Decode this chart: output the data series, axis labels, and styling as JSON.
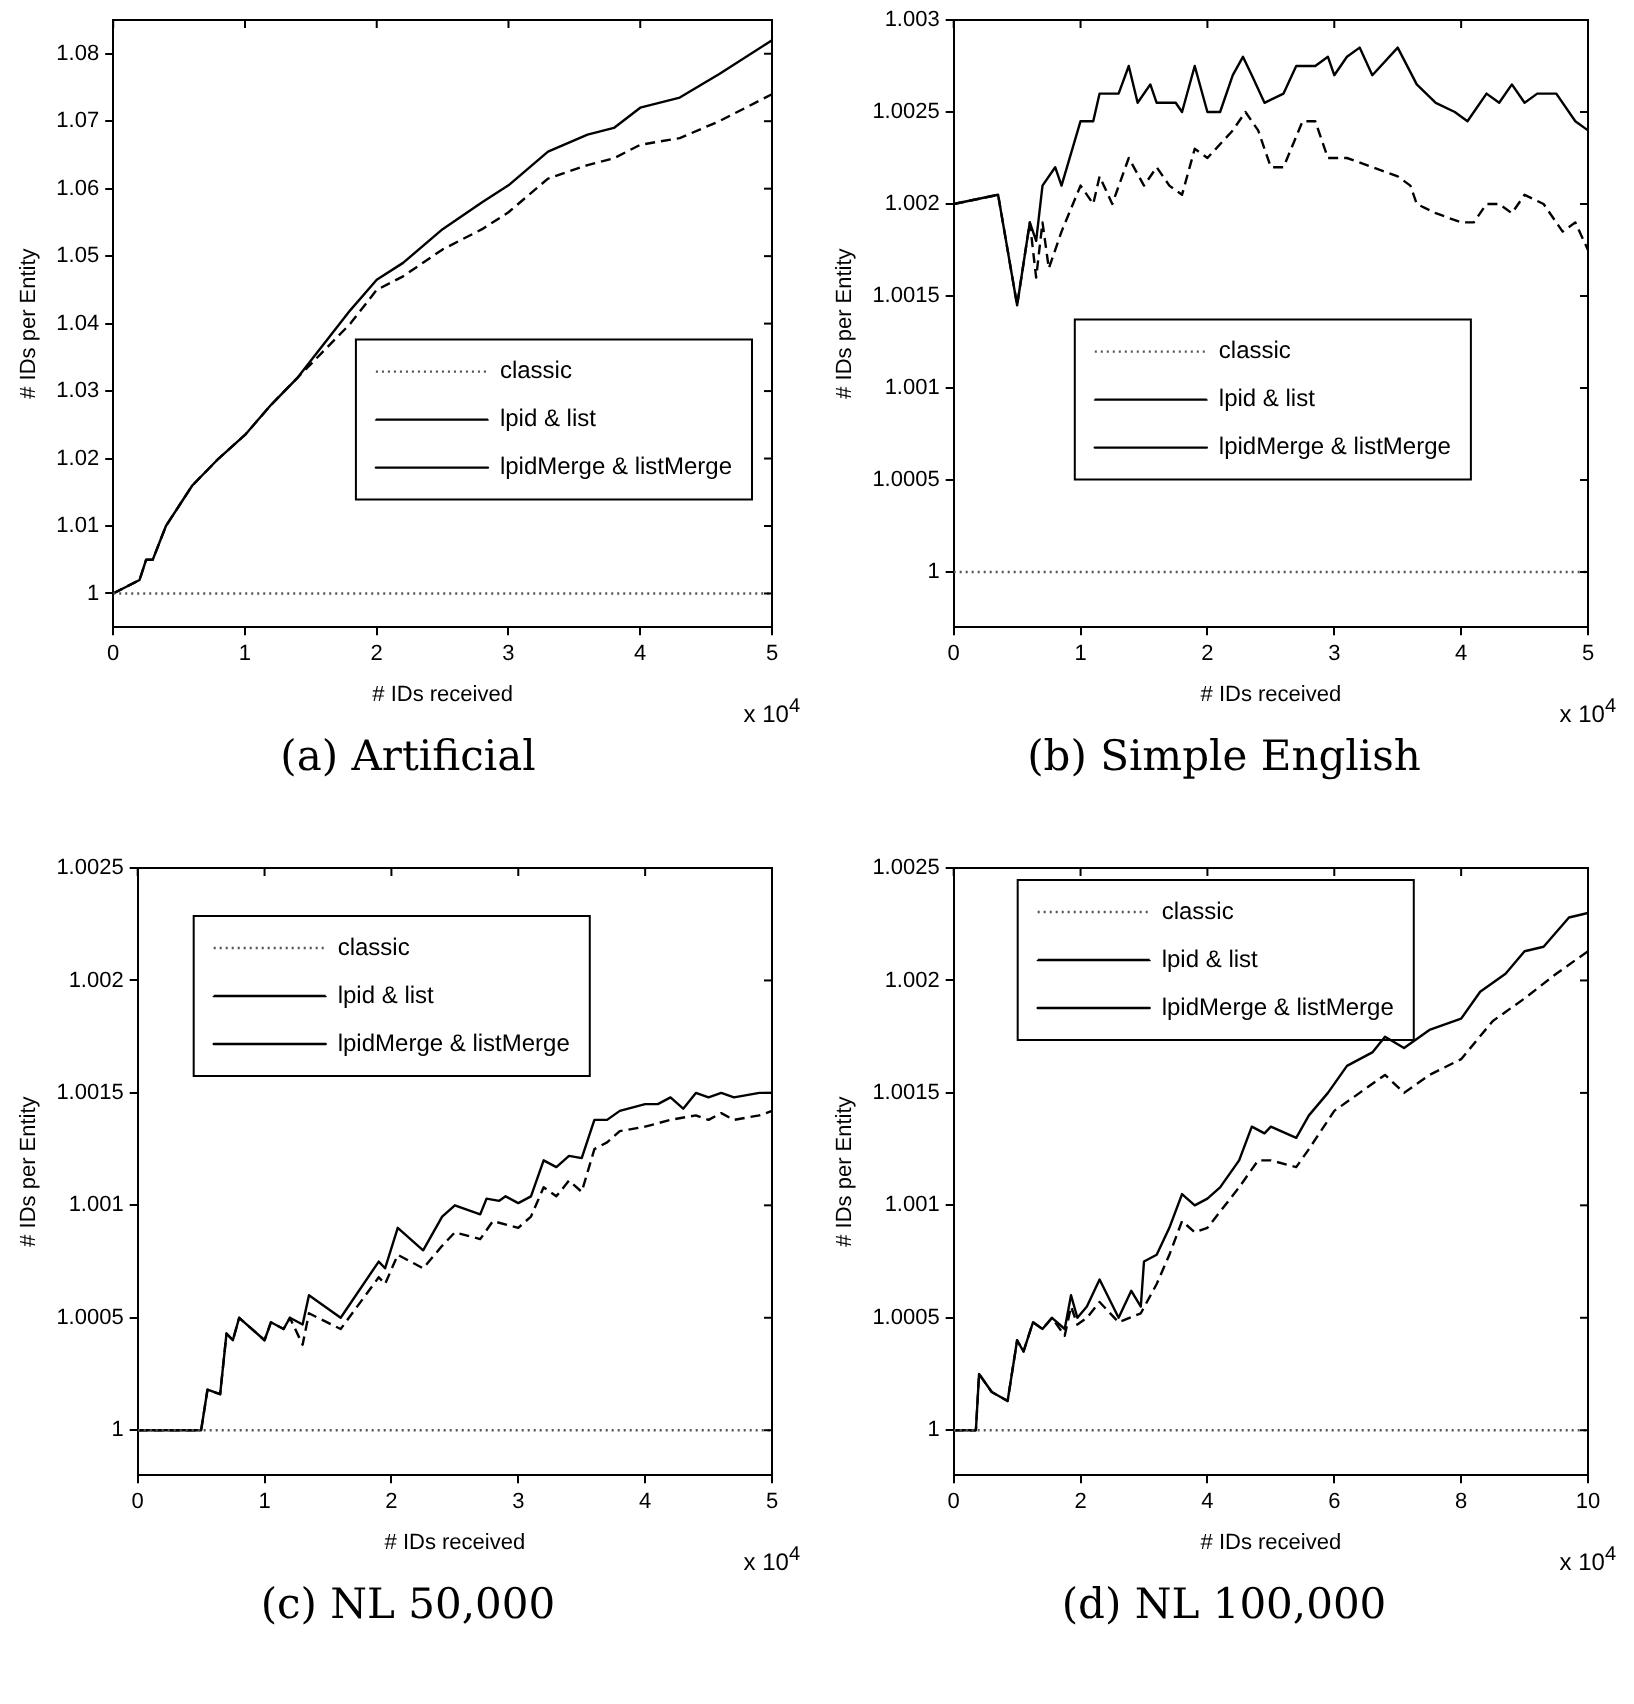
{
  "chart_data": [
    {
      "type": "line",
      "title": "(a) Artificial",
      "xlabel": "# IDs received",
      "ylabel": "# IDs per Entity",
      "annotations": [
        "x 10$^{4}$"
      ],
      "xlim": [
        0,
        5
      ],
      "xticks": [
        0,
        1,
        2,
        3,
        4,
        5
      ],
      "ylim": [
        0.995,
        1.085
      ],
      "yticks": [
        1,
        1.01,
        1.02,
        1.03,
        1.04,
        1.05,
        1.06,
        1.07,
        1.08
      ],
      "legend": "right",
      "grid": false,
      "marker": "none",
      "series": [
        {
          "name": "classic",
          "color": "#555555",
          "line_style": "dotted",
          "x": [
            0,
            5
          ],
          "values": [
            1,
            1
          ]
        },
        {
          "name": "lpid & list",
          "color": "#000000",
          "line_style": "dashed",
          "x": [
            0,
            0.2,
            0.25,
            0.3,
            0.4,
            0.5,
            0.6,
            0.8,
            1,
            1.2,
            1.4,
            1.6,
            1.8,
            2,
            2.2,
            2.5,
            2.8,
            3,
            3.3,
            3.6,
            3.8,
            4,
            4.3,
            4.6,
            5
          ],
          "values": [
            1,
            1.002,
            1.005,
            1.005,
            1.01,
            1.013,
            1.016,
            1.02,
            1.0235,
            1.028,
            1.032,
            1.036,
            1.04,
            1.045,
            1.047,
            1.051,
            1.054,
            1.0565,
            1.0615,
            1.0635,
            1.0645,
            1.0665,
            1.0675,
            1.07,
            1.074
          ]
        },
        {
          "name": "lpidMerge & listMerge",
          "color": "#000000",
          "line_style": "solid",
          "x": [
            0,
            0.2,
            0.25,
            0.3,
            0.4,
            0.5,
            0.6,
            0.8,
            1,
            1.2,
            1.4,
            1.6,
            1.8,
            2,
            2.2,
            2.5,
            2.8,
            3,
            3.3,
            3.6,
            3.8,
            4,
            4.3,
            4.6,
            5
          ],
          "values": [
            1,
            1.002,
            1.005,
            1.005,
            1.01,
            1.013,
            1.016,
            1.02,
            1.0235,
            1.028,
            1.032,
            1.037,
            1.042,
            1.0465,
            1.049,
            1.054,
            1.058,
            1.0605,
            1.0655,
            1.068,
            1.069,
            1.072,
            1.0735,
            1.077,
            1.082
          ]
        }
      ]
    },
    {
      "type": "line",
      "title": "(b) Simple English",
      "xlabel": "# IDs received",
      "ylabel": "# IDs per Entity",
      "annotations": [
        "x 10$^{4}$"
      ],
      "xlim": [
        0,
        5
      ],
      "xticks": [
        0,
        1,
        2,
        3,
        4,
        5
      ],
      "ylim": [
        0.9997,
        1.003
      ],
      "yticks": [
        1,
        1.0005,
        1.001,
        1.0015,
        1.002,
        1.0025,
        1.003
      ],
      "legend": "center",
      "grid": false,
      "marker": "none",
      "series": [
        {
          "name": "classic",
          "color": "#555555",
          "line_style": "dotted",
          "x": [
            0,
            5
          ],
          "values": [
            1,
            1
          ]
        },
        {
          "name": "lpid & list",
          "color": "#000000",
          "line_style": "dashed",
          "x": [
            0,
            0.35,
            0.5,
            0.6,
            0.65,
            0.7,
            0.75,
            0.85,
            1,
            1.1,
            1.15,
            1.25,
            1.38,
            1.5,
            1.6,
            1.7,
            1.8,
            1.9,
            2,
            2.2,
            2.3,
            2.4,
            2.5,
            2.6,
            2.75,
            2.85,
            2.95,
            3.1,
            3.3,
            3.5,
            3.6,
            3.65,
            3.8,
            4,
            4.1,
            4.2,
            4.3,
            4.4,
            4.5,
            4.65,
            4.8,
            4.9,
            5
          ],
          "values": [
            1.002,
            1.00205,
            1.00145,
            1.0019,
            1.0016,
            1.0019,
            1.00165,
            1.00185,
            1.0021,
            1.002,
            1.00215,
            1.002,
            1.00225,
            1.0021,
            1.0022,
            1.0021,
            1.00205,
            1.0023,
            1.00225,
            1.0024,
            1.0025,
            1.0024,
            1.0022,
            1.0022,
            1.00245,
            1.00245,
            1.00225,
            1.00225,
            1.0022,
            1.00215,
            1.0021,
            1.002,
            1.00195,
            1.0019,
            1.0019,
            1.002,
            1.002,
            1.00195,
            1.00205,
            1.002,
            1.00185,
            1.0019,
            1.00175
          ]
        },
        {
          "name": "lpidMerge & listMerge",
          "color": "#000000",
          "line_style": "solid",
          "x": [
            0,
            0.35,
            0.5,
            0.6,
            0.65,
            0.7,
            0.8,
            0.85,
            1,
            1.1,
            1.15,
            1.3,
            1.38,
            1.45,
            1.55,
            1.6,
            1.75,
            1.8,
            1.9,
            2,
            2.1,
            2.2,
            2.28,
            2.35,
            2.45,
            2.6,
            2.7,
            2.85,
            2.95,
            3,
            3.1,
            3.2,
            3.3,
            3.5,
            3.65,
            3.8,
            3.95,
            4.05,
            4.2,
            4.3,
            4.4,
            4.5,
            4.6,
            4.75,
            4.9,
            5
          ],
          "values": [
            1.002,
            1.00205,
            1.00145,
            1.0019,
            1.0018,
            1.0021,
            1.0022,
            1.0021,
            1.00245,
            1.00245,
            1.0026,
            1.0026,
            1.00275,
            1.00255,
            1.00265,
            1.00255,
            1.00255,
            1.0025,
            1.00275,
            1.0025,
            1.0025,
            1.0027,
            1.0028,
            1.0027,
            1.00255,
            1.0026,
            1.00275,
            1.00275,
            1.0028,
            1.0027,
            1.0028,
            1.00285,
            1.0027,
            1.00285,
            1.00265,
            1.00255,
            1.0025,
            1.00245,
            1.0026,
            1.00255,
            1.00265,
            1.00255,
            1.0026,
            1.0026,
            1.00245,
            1.0024
          ]
        }
      ]
    },
    {
      "type": "line",
      "title": "(c) NL 50,000",
      "xlabel": "# IDs received",
      "ylabel": "# IDs per Entity",
      "annotations": [
        "x 10$^{4}$"
      ],
      "xlim": [
        0,
        5
      ],
      "xticks": [
        0,
        1,
        2,
        3,
        4,
        5
      ],
      "ylim": [
        0.9998,
        1.0025
      ],
      "yticks": [
        1,
        1.0005,
        1.001,
        1.0015,
        1.002,
        1.0025
      ],
      "legend": "top left",
      "grid": false,
      "marker": "none",
      "series": [
        {
          "name": "classic",
          "color": "#555555",
          "line_style": "dotted",
          "x": [
            0,
            5
          ],
          "values": [
            1,
            1
          ]
        },
        {
          "name": "lpid & list",
          "color": "#000000",
          "line_style": "dashed",
          "x": [
            0,
            0.5,
            0.55,
            0.65,
            0.7,
            0.75,
            0.8,
            1,
            1.05,
            1.15,
            1.2,
            1.3,
            1.35,
            1.6,
            1.9,
            1.95,
            2.05,
            2.25,
            2.4,
            2.5,
            2.7,
            2.8,
            3,
            3.1,
            3.2,
            3.3,
            3.4,
            3.5,
            3.6,
            3.7,
            3.8,
            4,
            4.2,
            4.4,
            4.5,
            4.6,
            4.7,
            4.9,
            5
          ],
          "values": [
            1,
            1,
            1.00018,
            1.00016,
            1.00043,
            1.0004,
            1.0005,
            1.0004,
            1.00048,
            1.00045,
            1.0005,
            1.00038,
            1.00052,
            1.00045,
            1.00068,
            1.00065,
            1.00078,
            1.00072,
            1.00082,
            1.00088,
            1.00085,
            1.00093,
            1.0009,
            1.00095,
            1.00108,
            1.00104,
            1.00111,
            1.00106,
            1.00125,
            1.00128,
            1.00133,
            1.00135,
            1.00138,
            1.0014,
            1.00138,
            1.00141,
            1.00138,
            1.0014,
            1.00142
          ]
        },
        {
          "name": "lpidMerge & listMerge",
          "color": "#000000",
          "line_style": "solid",
          "x": [
            0,
            0.5,
            0.55,
            0.65,
            0.7,
            0.75,
            0.8,
            1,
            1.05,
            1.15,
            1.2,
            1.3,
            1.35,
            1.6,
            1.9,
            1.95,
            2.05,
            2.25,
            2.4,
            2.5,
            2.7,
            2.75,
            2.85,
            2.9,
            3,
            3.1,
            3.2,
            3.3,
            3.4,
            3.5,
            3.6,
            3.7,
            3.8,
            4,
            4.1,
            4.2,
            4.3,
            4.4,
            4.5,
            4.6,
            4.7,
            4.9,
            5
          ],
          "values": [
            1,
            1,
            1.00018,
            1.00016,
            1.00043,
            1.0004,
            1.0005,
            1.0004,
            1.00048,
            1.00045,
            1.0005,
            1.00047,
            1.0006,
            1.0005,
            1.00075,
            1.00072,
            1.0009,
            1.0008,
            1.00095,
            1.001,
            1.00096,
            1.00103,
            1.00102,
            1.00104,
            1.00101,
            1.00104,
            1.0012,
            1.00117,
            1.00122,
            1.00121,
            1.00138,
            1.00138,
            1.00142,
            1.00145,
            1.00145,
            1.00148,
            1.00143,
            1.0015,
            1.00148,
            1.0015,
            1.00148,
            1.0015,
            1.0015
          ]
        }
      ]
    },
    {
      "type": "line",
      "title": "(d) NL 100,000",
      "xlabel": "# IDs received",
      "ylabel": "# IDs per Entity",
      "annotations": [
        "x 10$^{4}$"
      ],
      "xlim": [
        0,
        10
      ],
      "xticks": [
        0,
        2,
        4,
        6,
        8,
        10
      ],
      "ylim": [
        0.9998,
        1.0025
      ],
      "yticks": [
        1,
        1.0005,
        1.001,
        1.0015,
        1.002,
        1.0025
      ],
      "legend": "top",
      "grid": false,
      "marker": "none",
      "series": [
        {
          "name": "classic",
          "color": "#555555",
          "line_style": "dotted",
          "x": [
            0,
            10
          ],
          "values": [
            1,
            1
          ]
        },
        {
          "name": "lpid & list",
          "color": "#000000",
          "line_style": "dashed",
          "x": [
            0,
            0.35,
            0.4,
            0.6,
            0.85,
            1,
            1.1,
            1.25,
            1.4,
            1.55,
            1.75,
            1.85,
            1.95,
            2.1,
            2.3,
            2.6,
            2.95,
            3.2,
            3.4,
            3.6,
            3.8,
            4,
            4.5,
            4.8,
            5,
            5.4,
            5.6,
            6,
            6.4,
            6.8,
            7.1,
            7.5,
            8,
            8.5,
            9,
            9.5,
            10
          ],
          "values": [
            1,
            1,
            1.00025,
            1.00017,
            1.00013,
            1.0004,
            1.00035,
            1.00048,
            1.00045,
            1.0005,
            1.00042,
            1.00055,
            1.00047,
            1.0005,
            1.00057,
            1.00048,
            1.00052,
            1.00065,
            1.00078,
            1.00093,
            1.00088,
            1.0009,
            1.00108,
            1.0012,
            1.0012,
            1.00117,
            1.00125,
            1.00142,
            1.0015,
            1.00158,
            1.0015,
            1.00158,
            1.00165,
            1.00182,
            1.00192,
            1.00203,
            1.00213
          ]
        },
        {
          "name": "lpidMerge & listMerge",
          "color": "#000000",
          "line_style": "solid",
          "x": [
            0,
            0.35,
            0.4,
            0.6,
            0.85,
            1,
            1.1,
            1.25,
            1.4,
            1.55,
            1.75,
            1.85,
            1.95,
            2.1,
            2.3,
            2.6,
            2.8,
            2.95,
            3,
            3.2,
            3.4,
            3.6,
            3.8,
            4,
            4.2,
            4.5,
            4.7,
            4.9,
            5,
            5.4,
            5.6,
            5.9,
            6.2,
            6.6,
            6.8,
            7.1,
            7.5,
            8,
            8.3,
            8.7,
            9,
            9.3,
            9.7,
            10
          ],
          "values": [
            1,
            1,
            1.00025,
            1.00017,
            1.00013,
            1.0004,
            1.00035,
            1.00048,
            1.00045,
            1.0005,
            1.00045,
            1.0006,
            1.0005,
            1.00055,
            1.00067,
            1.0005,
            1.00062,
            1.00055,
            1.00075,
            1.00078,
            1.0009,
            1.00105,
            1.001,
            1.00103,
            1.00108,
            1.0012,
            1.00135,
            1.00132,
            1.00135,
            1.0013,
            1.0014,
            1.0015,
            1.00162,
            1.00168,
            1.00175,
            1.0017,
            1.00178,
            1.00183,
            1.00195,
            1.00203,
            1.00213,
            1.00215,
            1.00228,
            1.0023
          ]
        }
      ]
    }
  ]
}
